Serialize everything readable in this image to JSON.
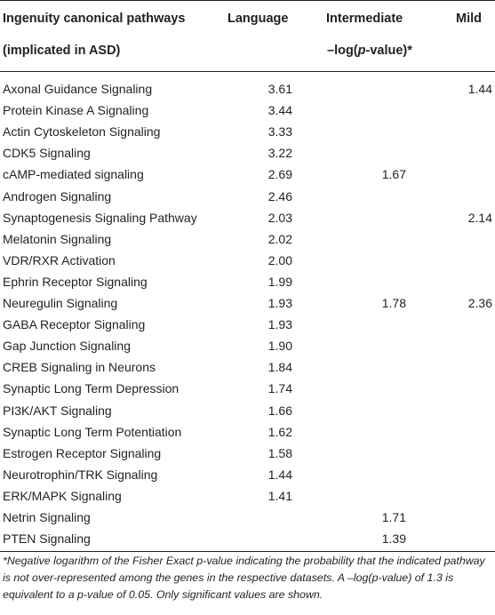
{
  "header": {
    "col0_line1": "Ingenuity canonical pathways",
    "col0_line2": "(implicated in ASD)",
    "col1": "Language",
    "col2": "Intermediate",
    "col3": "Mild",
    "unit_prefix": "–log(",
    "unit_italic": "p",
    "unit_suffix": "-value)*"
  },
  "rows": [
    {
      "pathway": "Axonal Guidance Signaling",
      "language": "3.61",
      "intermediate": "",
      "mild": "1.44"
    },
    {
      "pathway": "Protein Kinase A Signaling",
      "language": "3.44",
      "intermediate": "",
      "mild": ""
    },
    {
      "pathway": "Actin Cytoskeleton Signaling",
      "language": "3.33",
      "intermediate": "",
      "mild": ""
    },
    {
      "pathway": "CDK5 Signaling",
      "language": "3.22",
      "intermediate": "",
      "mild": ""
    },
    {
      "pathway": "cAMP-mediated signaling",
      "language": "2.69",
      "intermediate": "1.67",
      "mild": ""
    },
    {
      "pathway": "Androgen Signaling",
      "language": "2.46",
      "intermediate": "",
      "mild": ""
    },
    {
      "pathway": "Synaptogenesis Signaling Pathway",
      "language": "2.03",
      "intermediate": "",
      "mild": "2.14"
    },
    {
      "pathway": "Melatonin Signaling",
      "language": "2.02",
      "intermediate": "",
      "mild": ""
    },
    {
      "pathway": "VDR/RXR Activation",
      "language": "2.00",
      "intermediate": "",
      "mild": ""
    },
    {
      "pathway": "Ephrin Receptor Signaling",
      "language": "1.99",
      "intermediate": "",
      "mild": ""
    },
    {
      "pathway": "Neuregulin Signaling",
      "language": "1.93",
      "intermediate": "1.78",
      "mild": "2.36"
    },
    {
      "pathway": "GABA Receptor Signaling",
      "language": "1.93",
      "intermediate": "",
      "mild": ""
    },
    {
      "pathway": "Gap Junction Signaling",
      "language": "1.90",
      "intermediate": "",
      "mild": ""
    },
    {
      "pathway": "CREB Signaling in Neurons",
      "language": "1.84",
      "intermediate": "",
      "mild": ""
    },
    {
      "pathway": "Synaptic Long Term Depression",
      "language": "1.74",
      "intermediate": "",
      "mild": ""
    },
    {
      "pathway": "PI3K/AKT Signaling",
      "language": "1.66",
      "intermediate": "",
      "mild": ""
    },
    {
      "pathway": "Synaptic Long Term Potentiation",
      "language": "1.62",
      "intermediate": "",
      "mild": ""
    },
    {
      "pathway": "Estrogen Receptor Signaling",
      "language": "1.58",
      "intermediate": "",
      "mild": ""
    },
    {
      "pathway": "Neurotrophin/TRK Signaling",
      "language": "1.44",
      "intermediate": "",
      "mild": ""
    },
    {
      "pathway": "ERK/MAPK Signaling",
      "language": "1.41",
      "intermediate": "",
      "mild": ""
    },
    {
      "pathway": "Netrin Signaling",
      "language": "",
      "intermediate": "1.71",
      "mild": ""
    },
    {
      "pathway": "PTEN Signaling",
      "language": "",
      "intermediate": "1.39",
      "mild": ""
    }
  ],
  "footnote": "*Negative logarithm of the Fisher Exact p-value indicating the probability that the indicated pathway is not over-represented among the genes in the respective datasets. A –log(p-value) of 1.3 is equivalent to a p-value of 0.05. Only significant values are shown."
}
